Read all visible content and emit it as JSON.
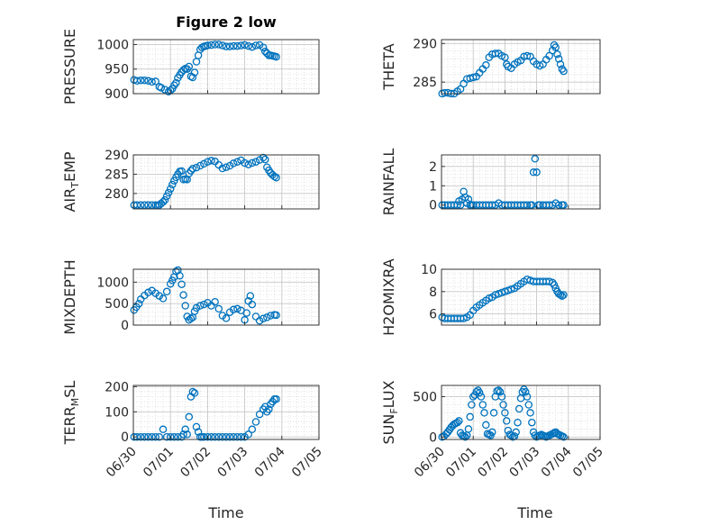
{
  "figure": {
    "title": "Figure 2 low",
    "xlabel": "Time"
  },
  "colors": {
    "marker": "#0072BD",
    "axis": "#262626",
    "grid": "#D0D0D0"
  },
  "chart_data": [
    {
      "id": "pressure",
      "type": "scatter",
      "title": "Figure 2 low",
      "ylabel": "PRESSURE",
      "ylim": [
        900,
        1010
      ],
      "yticks": [
        900,
        950,
        1000
      ],
      "xlim": [
        0,
        5
      ],
      "xticks": [
        "06/30",
        "07/01",
        "07/02",
        "07/03",
        "07/04",
        "07/05"
      ],
      "show_xticklabels": false,
      "grid": true,
      "x": [
        0.02,
        0.1,
        0.2,
        0.3,
        0.4,
        0.5,
        0.6,
        0.7,
        0.75,
        0.85,
        0.95,
        1.0,
        1.05,
        1.1,
        1.15,
        1.2,
        1.25,
        1.3,
        1.35,
        1.4,
        1.45,
        1.5,
        1.55,
        1.6,
        1.65,
        1.7,
        1.75,
        1.8,
        1.85,
        1.9,
        1.95,
        2.0,
        2.1,
        2.2,
        2.3,
        2.4,
        2.5,
        2.6,
        2.7,
        2.8,
        2.9,
        3.0,
        3.1,
        3.2,
        3.3,
        3.4,
        3.5,
        3.55,
        3.6,
        3.65,
        3.7,
        3.75,
        3.8,
        3.85
      ],
      "y": [
        928,
        926,
        927,
        927,
        926,
        924,
        925,
        914,
        912,
        908,
        904,
        907,
        910,
        917,
        922,
        932,
        938,
        944,
        948,
        951,
        950,
        955,
        935,
        933,
        943,
        965,
        978,
        990,
        994,
        996,
        997,
        998,
        999,
        1000,
        1000,
        998,
        996,
        996,
        997,
        997,
        998,
        999,
        997,
        995,
        998,
        999,
        994,
        986,
        982,
        978,
        978,
        977,
        976,
        975
      ]
    },
    {
      "id": "theta",
      "type": "scatter",
      "ylabel": "THETA",
      "ylim": [
        283.5,
        290.5
      ],
      "yticks": [
        285,
        290
      ],
      "xlim": [
        0,
        5
      ],
      "xticks": [
        "06/30",
        "07/01",
        "07/02",
        "07/03",
        "07/04",
        "07/05"
      ],
      "show_xticklabels": false,
      "grid": true,
      "x": [
        0.02,
        0.1,
        0.2,
        0.3,
        0.4,
        0.5,
        0.6,
        0.7,
        0.8,
        0.9,
        1.0,
        1.1,
        1.2,
        1.3,
        1.4,
        1.5,
        1.6,
        1.7,
        1.8,
        1.9,
        2.0,
        2.05,
        2.1,
        2.2,
        2.3,
        2.4,
        2.5,
        2.6,
        2.7,
        2.8,
        2.9,
        3.0,
        3.1,
        3.2,
        3.3,
        3.4,
        3.5,
        3.55,
        3.6,
        3.65,
        3.7,
        3.75,
        3.8,
        3.85
      ],
      "y": [
        283.5,
        283.6,
        283.6,
        283.5,
        283.5,
        283.8,
        284.1,
        284.8,
        285.4,
        285.5,
        285.6,
        285.7,
        286.2,
        286.7,
        287.2,
        288.2,
        288.6,
        288.7,
        288.7,
        288.4,
        288.2,
        287.3,
        287.0,
        286.8,
        287.3,
        287.6,
        287.8,
        288.3,
        288.4,
        288.3,
        287.7,
        287.3,
        287.1,
        287.3,
        287.9,
        288.4,
        289.1,
        289.8,
        289.5,
        288.6,
        288.0,
        287.3,
        286.7,
        286.4
      ]
    },
    {
      "id": "air_temp",
      "type": "scatter",
      "ylabel": "AIR",
      "ylabel_sub": "T",
      "ylabel_suffix": "EMP",
      "ylim": [
        276,
        290
      ],
      "yticks": [
        280,
        285,
        290
      ],
      "xlim": [
        0,
        5
      ],
      "xticks": [
        "06/30",
        "07/01",
        "07/02",
        "07/03",
        "07/04",
        "07/05"
      ],
      "show_xticklabels": false,
      "grid": true,
      "x": [
        0.02,
        0.1,
        0.2,
        0.3,
        0.4,
        0.5,
        0.6,
        0.65,
        0.7,
        0.75,
        0.8,
        0.85,
        0.9,
        0.95,
        1.0,
        1.05,
        1.1,
        1.15,
        1.2,
        1.25,
        1.3,
        1.35,
        1.4,
        1.45,
        1.5,
        1.55,
        1.6,
        1.7,
        1.8,
        1.9,
        2.0,
        2.1,
        2.2,
        2.3,
        2.4,
        2.5,
        2.6,
        2.7,
        2.8,
        2.9,
        3.0,
        3.1,
        3.2,
        3.3,
        3.4,
        3.5,
        3.55,
        3.6,
        3.65,
        3.7,
        3.75,
        3.8,
        3.85
      ],
      "y": [
        277,
        277,
        277,
        277,
        277,
        277,
        277,
        276.9,
        277,
        277.4,
        277.8,
        278.3,
        279.3,
        280.2,
        281.2,
        282.3,
        283.3,
        284.2,
        285.0,
        285.7,
        285.8,
        283.6,
        283.7,
        283.6,
        285.2,
        285.9,
        286.4,
        286.7,
        287.2,
        287.7,
        288.2,
        288.5,
        288.3,
        287.4,
        286.5,
        286.8,
        287.2,
        287.8,
        288.2,
        288.6,
        287.9,
        287.5,
        287.9,
        288.2,
        288.7,
        289.3,
        288.8,
        286.8,
        286.0,
        285.3,
        284.8,
        284.4,
        284.1
      ]
    },
    {
      "id": "rainfall",
      "type": "scatter",
      "ylabel": "RAINFALL",
      "ylim": [
        -0.2,
        2.6
      ],
      "yticks": [
        0,
        1,
        2
      ],
      "xlim": [
        0,
        5
      ],
      "xticks": [
        "06/30",
        "07/01",
        "07/02",
        "07/03",
        "07/04",
        "07/05"
      ],
      "show_xticklabels": false,
      "grid": true,
      "x": [
        0.02,
        0.1,
        0.2,
        0.3,
        0.4,
        0.5,
        0.55,
        0.6,
        0.65,
        0.7,
        0.75,
        0.8,
        0.85,
        0.9,
        0.95,
        1.0,
        1.1,
        1.2,
        1.3,
        1.4,
        1.5,
        1.6,
        1.7,
        1.8,
        1.9,
        2.0,
        2.1,
        2.2,
        2.3,
        2.4,
        2.5,
        2.6,
        2.7,
        2.8,
        2.85,
        2.9,
        2.95,
        3.0,
        3.05,
        3.1,
        3.2,
        3.3,
        3.4,
        3.5,
        3.6,
        3.7,
        3.8,
        3.85
      ],
      "y": [
        0,
        0,
        0,
        0,
        0,
        0,
        0.2,
        0,
        0.3,
        0.7,
        0.4,
        0.1,
        0.3,
        0,
        0,
        0,
        0,
        0,
        0,
        0,
        0,
        0,
        0,
        0.1,
        0,
        0,
        0,
        0,
        0,
        0,
        0,
        0,
        0,
        0,
        0,
        1.7,
        2.4,
        1.7,
        0,
        0,
        0,
        0,
        0,
        0,
        0.1,
        0,
        0,
        0
      ]
    },
    {
      "id": "mixdepth",
      "type": "scatter",
      "ylabel": "MIXDEPTH",
      "ylim": [
        0,
        1300
      ],
      "yticks": [
        0,
        500,
        1000
      ],
      "xlim": [
        0,
        5
      ],
      "xticks": [
        "06/30",
        "07/01",
        "07/02",
        "07/03",
        "07/04",
        "07/05"
      ],
      "show_xticklabels": false,
      "grid": true,
      "x": [
        0.02,
        0.08,
        0.15,
        0.2,
        0.3,
        0.4,
        0.5,
        0.6,
        0.7,
        0.8,
        0.9,
        1.0,
        1.05,
        1.1,
        1.15,
        1.2,
        1.25,
        1.3,
        1.35,
        1.4,
        1.45,
        1.5,
        1.55,
        1.6,
        1.65,
        1.7,
        1.8,
        1.9,
        2.0,
        2.1,
        2.2,
        2.3,
        2.4,
        2.5,
        2.6,
        2.7,
        2.8,
        2.9,
        3.0,
        3.05,
        3.1,
        3.15,
        3.2,
        3.3,
        3.4,
        3.5,
        3.6,
        3.7,
        3.8,
        3.85
      ],
      "y": [
        350,
        420,
        500,
        600,
        690,
        760,
        800,
        740,
        680,
        620,
        780,
        960,
        1040,
        1120,
        1250,
        1280,
        1150,
        950,
        700,
        450,
        200,
        120,
        150,
        180,
        320,
        400,
        450,
        480,
        520,
        450,
        540,
        380,
        220,
        160,
        300,
        360,
        380,
        340,
        120,
        280,
        560,
        680,
        480,
        200,
        100,
        150,
        180,
        220,
        240,
        230
      ]
    },
    {
      "id": "h2omixra",
      "type": "scatter",
      "ylabel": "H2OMIXRA",
      "ylim": [
        5,
        10
      ],
      "yticks": [
        6,
        8,
        10
      ],
      "xlim": [
        0,
        5
      ],
      "xticks": [
        "06/30",
        "07/01",
        "07/02",
        "07/03",
        "07/04",
        "07/05"
      ],
      "show_xticklabels": false,
      "grid": true,
      "x": [
        0.02,
        0.1,
        0.2,
        0.3,
        0.4,
        0.5,
        0.6,
        0.7,
        0.8,
        0.9,
        1.0,
        1.1,
        1.2,
        1.3,
        1.4,
        1.5,
        1.6,
        1.7,
        1.8,
        1.9,
        2.0,
        2.1,
        2.2,
        2.3,
        2.4,
        2.5,
        2.6,
        2.7,
        2.8,
        2.9,
        3.0,
        3.1,
        3.2,
        3.3,
        3.4,
        3.5,
        3.55,
        3.6,
        3.65,
        3.7,
        3.75,
        3.8,
        3.85
      ],
      "y": [
        5.7,
        5.6,
        5.6,
        5.6,
        5.6,
        5.6,
        5.6,
        5.6,
        5.7,
        5.9,
        6.3,
        6.6,
        6.8,
        7.0,
        7.2,
        7.4,
        7.5,
        7.7,
        7.8,
        7.9,
        8.0,
        8.1,
        8.2,
        8.3,
        8.5,
        8.7,
        8.9,
        9.1,
        9.0,
        8.9,
        8.9,
        8.9,
        8.9,
        8.9,
        8.9,
        8.8,
        8.6,
        8.3,
        8.0,
        7.8,
        7.7,
        7.6,
        7.7
      ]
    },
    {
      "id": "terr_msl",
      "type": "scatter",
      "ylabel": "TERR",
      "ylabel_sub": "M",
      "ylabel_suffix": "SL",
      "ylim": [
        -10,
        205
      ],
      "yticks": [
        0,
        100,
        200
      ],
      "xlim": [
        0,
        5
      ],
      "xticks": [
        "06/30",
        "07/01",
        "07/02",
        "07/03",
        "07/04",
        "07/05"
      ],
      "show_xticklabels": true,
      "grid": true,
      "x": [
        0.02,
        0.1,
        0.2,
        0.3,
        0.4,
        0.5,
        0.6,
        0.7,
        0.8,
        0.9,
        1.0,
        1.1,
        1.2,
        1.3,
        1.35,
        1.4,
        1.45,
        1.5,
        1.55,
        1.6,
        1.65,
        1.7,
        1.75,
        1.8,
        1.85,
        1.9,
        2.0,
        2.1,
        2.2,
        2.3,
        2.4,
        2.5,
        2.6,
        2.7,
        2.8,
        2.9,
        3.0,
        3.1,
        3.2,
        3.3,
        3.4,
        3.5,
        3.55,
        3.6,
        3.65,
        3.7,
        3.75,
        3.8,
        3.85
      ],
      "y": [
        0,
        0,
        0,
        0,
        0,
        0,
        0,
        0,
        30,
        0,
        0,
        0,
        0,
        0,
        10,
        30,
        10,
        80,
        160,
        180,
        175,
        40,
        20,
        0,
        0,
        0,
        0,
        0,
        0,
        0,
        0,
        0,
        0,
        0,
        0,
        0,
        0,
        10,
        30,
        60,
        90,
        110,
        120,
        100,
        110,
        130,
        140,
        150,
        150
      ]
    },
    {
      "id": "sun_flux",
      "type": "scatter",
      "ylabel": "SUN",
      "ylabel_sub": "F",
      "ylabel_suffix": "LUX",
      "ylim": [
        -30,
        640
      ],
      "yticks": [
        0,
        500
      ],
      "xlim": [
        0,
        5
      ],
      "xticks": [
        "06/30",
        "07/01",
        "07/02",
        "07/03",
        "07/04",
        "07/05"
      ],
      "show_xticklabels": true,
      "grid": true,
      "x": [
        0.02,
        0.08,
        0.15,
        0.2,
        0.25,
        0.3,
        0.35,
        0.4,
        0.45,
        0.5,
        0.55,
        0.6,
        0.65,
        0.7,
        0.75,
        0.8,
        0.85,
        0.9,
        0.95,
        1.0,
        1.05,
        1.1,
        1.15,
        1.2,
        1.25,
        1.3,
        1.35,
        1.4,
        1.45,
        1.5,
        1.55,
        1.6,
        1.65,
        1.7,
        1.75,
        1.8,
        1.85,
        1.9,
        1.95,
        2.0,
        2.05,
        2.1,
        2.15,
        2.2,
        2.25,
        2.3,
        2.35,
        2.4,
        2.45,
        2.5,
        2.55,
        2.6,
        2.65,
        2.7,
        2.75,
        2.8,
        2.85,
        2.9,
        2.95,
        3.0,
        3.05,
        3.1,
        3.15,
        3.2,
        3.25,
        3.3,
        3.35,
        3.4,
        3.45,
        3.5,
        3.55,
        3.6,
        3.65,
        3.7,
        3.75,
        3.8,
        3.85
      ],
      "y": [
        0,
        10,
        40,
        60,
        90,
        120,
        140,
        160,
        170,
        180,
        200,
        50,
        20,
        10,
        0,
        20,
        100,
        250,
        400,
        500,
        520,
        560,
        580,
        550,
        500,
        400,
        300,
        150,
        40,
        30,
        20,
        60,
        300,
        500,
        570,
        580,
        560,
        500,
        400,
        300,
        200,
        80,
        30,
        20,
        0,
        10,
        60,
        180,
        350,
        480,
        560,
        590,
        560,
        500,
        400,
        300,
        180,
        60,
        20,
        0,
        10,
        20,
        30,
        20,
        10,
        0,
        10,
        20,
        30,
        40,
        50,
        60,
        40,
        30,
        20,
        10,
        0
      ]
    }
  ]
}
